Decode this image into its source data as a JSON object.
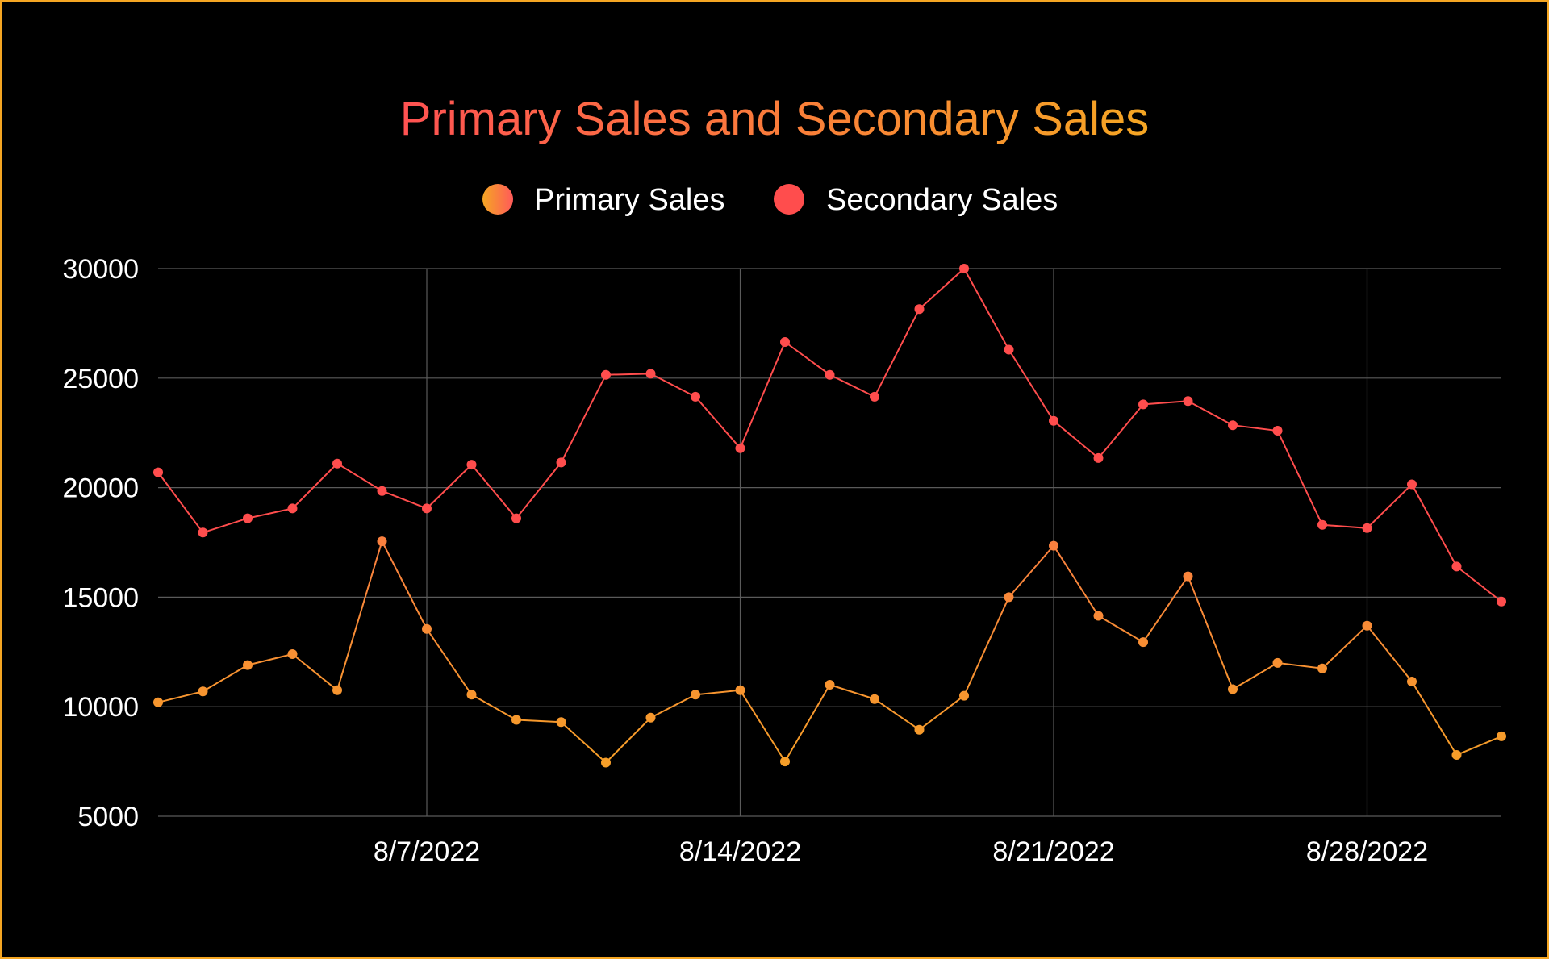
{
  "colors": {
    "background": "#000000",
    "border": "#f5a623",
    "grid": "#5a5a5a",
    "primary_start": "#ff5a5a",
    "primary_end": "#f5a623",
    "secondary": "#ff4d4d",
    "title_start": "#ff5252",
    "title_end": "#f5a623"
  },
  "chart_data": {
    "type": "line",
    "title": "Primary Sales and Secondary Sales",
    "legend_position": "top-center",
    "grid": true,
    "x_start_date": "8/1/2022",
    "x_range": [
      "8/1/2022",
      "8/31/2022"
    ],
    "ylim": [
      5000,
      30000
    ],
    "y_ticks": [
      "5000",
      "10000",
      "15000",
      "20000",
      "25000",
      "30000"
    ],
    "x_ticks": [
      "8/7/2022",
      "8/14/2022",
      "8/21/2022",
      "8/28/2022"
    ],
    "series": [
      {
        "name": "Primary Sales",
        "values": [
          10200,
          10700,
          11900,
          12400,
          10750,
          17550,
          13550,
          10550,
          9400,
          9300,
          7450,
          9500,
          10550,
          10750,
          7500,
          11000,
          10350,
          8950,
          10500,
          15000,
          17350,
          14150,
          12950,
          15950,
          10800,
          12000,
          11750,
          13700,
          11150,
          7800,
          8650
        ]
      },
      {
        "name": "Secondary Sales",
        "values": [
          20700,
          17950,
          18600,
          19050,
          21100,
          19850,
          19050,
          21050,
          18600,
          21150,
          25150,
          25200,
          24150,
          21800,
          26650,
          25150,
          24150,
          28150,
          30000,
          26300,
          23050,
          21350,
          23800,
          23950,
          22850,
          22600,
          18300,
          18150,
          20150,
          16400,
          14800
        ]
      }
    ]
  }
}
